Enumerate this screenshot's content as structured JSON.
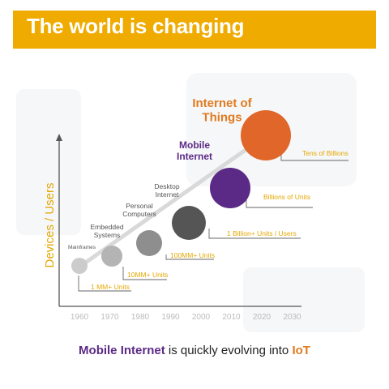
{
  "title": "The world is changing",
  "y_axis_label": "Devices / Users",
  "x_ticks": [
    "1960",
    "1970",
    "1980",
    "1990",
    "2000",
    "2010",
    "2020",
    "2030"
  ],
  "eras": [
    {
      "name_lines": [
        "Mainframes"
      ],
      "units": "1 MM+ Units",
      "color": "#cccccc"
    },
    {
      "name_lines": [
        "Embedded",
        "Systems"
      ],
      "units": "10MM+ Units",
      "color": "#b4b4b4"
    },
    {
      "name_lines": [
        "Personal",
        "Computers"
      ],
      "units": "100MM+ Units",
      "color": "#8e8e8e"
    },
    {
      "name_lines": [
        "Desktop",
        "Internet"
      ],
      "units": "1 Billion+ Units / Users",
      "color": "#555555"
    },
    {
      "name_lines": [
        "Mobile",
        "Internet"
      ],
      "units": "Billions of Units",
      "color": "#5b2a86"
    },
    {
      "name_lines": [
        "Internet of",
        "Things"
      ],
      "units": "Tens of Billions",
      "color": "#e0662a"
    }
  ],
  "colors": {
    "title_bar": "#f0ab00",
    "accent_gold": "#e4a700",
    "mobile_purple": "#5b2a86",
    "iot_orange": "#e07a1f"
  },
  "caption": {
    "part1": "Mobile Internet",
    "part2": " is quickly evolving into ",
    "part3": "IoT"
  }
}
